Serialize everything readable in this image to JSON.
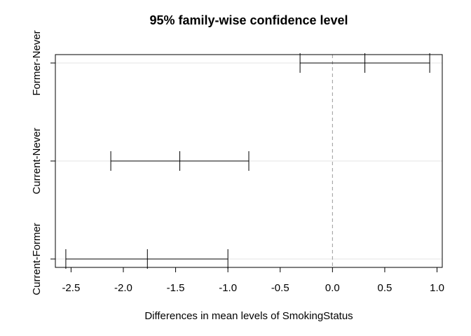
{
  "chart_data": {
    "type": "interval",
    "title": "95% family-wise confidence level",
    "xlabel": "Differences in mean levels of SmokingStatus",
    "ylabel": "",
    "xlim": [
      -2.65,
      1.05
    ],
    "xticks": [
      -2.5,
      -2.0,
      -1.5,
      -1.0,
      -0.5,
      0.0,
      0.5,
      1.0
    ],
    "xtick_labels": [
      "-2.5",
      "-2.0",
      "-1.5",
      "-1.0",
      "-0.5",
      "0.0",
      "0.5",
      "1.0"
    ],
    "reference_line": 0.0,
    "grid": "horizontal light gray at each comparison",
    "comparisons": [
      {
        "label": "Former-Never",
        "lwr": -0.31,
        "diff": 0.31,
        "upr": 0.93
      },
      {
        "label": "Current-Never",
        "lwr": -2.12,
        "diff": -1.46,
        "upr": -0.8
      },
      {
        "label": "Current-Former",
        "lwr": -2.55,
        "diff": -1.77,
        "upr": -1.0
      }
    ]
  },
  "colors": {
    "line": "#000000",
    "grid": "#e6e6e6",
    "reference": "#999999"
  }
}
